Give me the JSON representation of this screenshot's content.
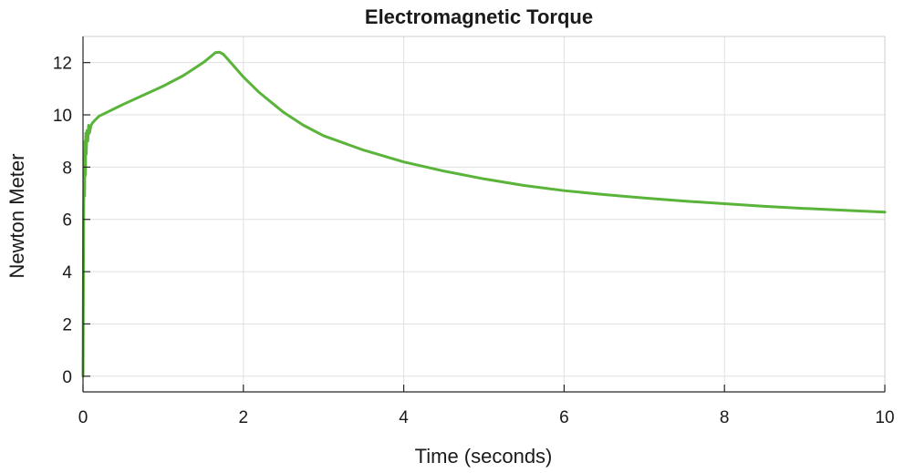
{
  "chart_data": {
    "type": "line",
    "title": "Electromagnetic Torque",
    "xlabel": "Time (seconds)",
    "ylabel": "Newton Meter",
    "xlim": [
      0,
      10
    ],
    "ylim": [
      -0.6,
      13
    ],
    "xticks": [
      0,
      2,
      4,
      6,
      8,
      10
    ],
    "yticks": [
      0,
      2,
      4,
      6,
      8,
      10,
      12
    ],
    "grid": true,
    "legend": false,
    "colors": {
      "series": "#5ab43a",
      "grid": "#e0e0e0",
      "axis": "#262626"
    },
    "series": [
      {
        "x": [
          0,
          0.008,
          0.015,
          0.02,
          0.025,
          0.03,
          0.035,
          0.04,
          0.05,
          0.06,
          0.07,
          0.08,
          0.1,
          0.12,
          0.15,
          0.2,
          0.3,
          0.5,
          0.75,
          1.0,
          1.25,
          1.5,
          1.6,
          1.65,
          1.7,
          1.75,
          1.8,
          1.9,
          2.0,
          2.2,
          2.5,
          2.75,
          3.0,
          3.5,
          4.0,
          4.5,
          5.0,
          5.5,
          6.0,
          6.5,
          7.0,
          7.5,
          8.0,
          8.5,
          9.0,
          9.5,
          10.0
        ],
        "y": [
          0,
          6.0,
          8.6,
          6.9,
          9.0,
          7.7,
          9.3,
          8.5,
          9.4,
          9.0,
          9.6,
          9.3,
          9.6,
          9.7,
          9.8,
          9.95,
          10.1,
          10.4,
          10.75,
          11.1,
          11.5,
          12.0,
          12.25,
          12.38,
          12.4,
          12.32,
          12.15,
          11.8,
          11.45,
          10.85,
          10.1,
          9.6,
          9.2,
          8.65,
          8.2,
          7.85,
          7.55,
          7.3,
          7.1,
          6.95,
          6.82,
          6.7,
          6.6,
          6.5,
          6.42,
          6.35,
          6.28
        ]
      }
    ]
  }
}
